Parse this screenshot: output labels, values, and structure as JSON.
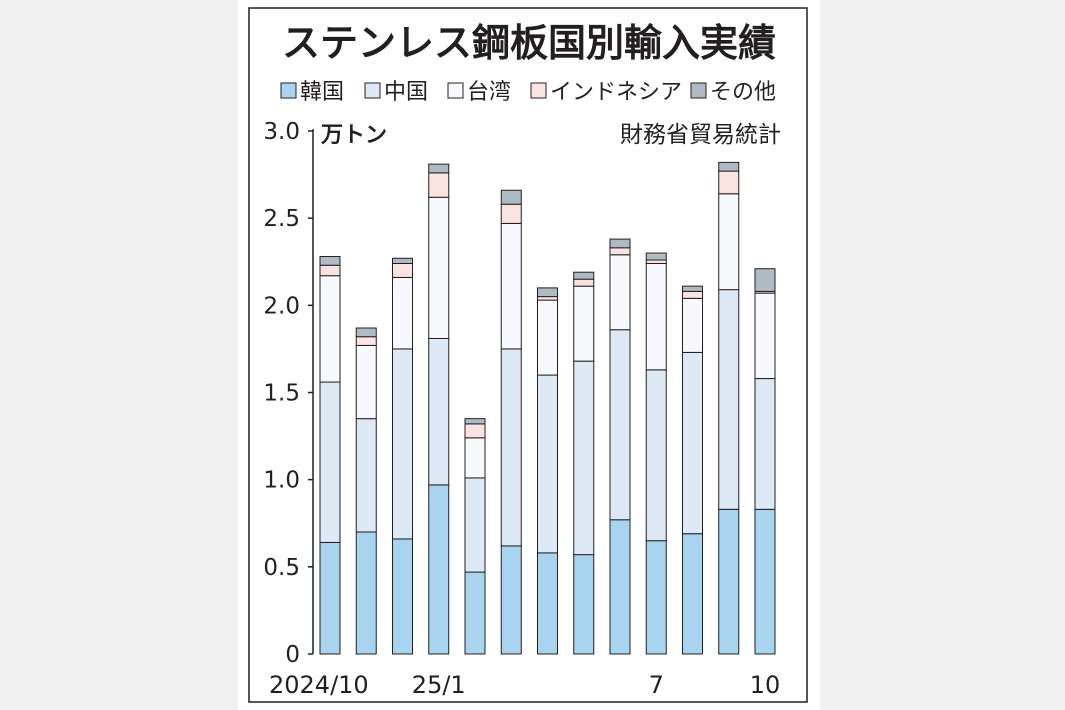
{
  "chart_data": {
    "type": "bar",
    "stacked": true,
    "title": "ステンレス鋼板国別輸入実績",
    "unit_label": "万トン",
    "source": "財務省貿易統計",
    "ylim": [
      0,
      3.0
    ],
    "y_ticks": [
      "0",
      "0.5",
      "1.0",
      "1.5",
      "2.0",
      "2.5",
      "3.0"
    ],
    "grid": false,
    "legend_position": "top",
    "months": [
      "2024/10",
      "2024/11",
      "2024/12",
      "2025/1",
      "2025/2",
      "2025/3",
      "2025/4",
      "2025/5",
      "2025/6",
      "2025/7",
      "2025/8",
      "2025/9",
      "2025/10"
    ],
    "x_tick_labels": [
      "2024/10",
      "",
      "",
      "25/1",
      "",
      "",
      "",
      "",
      "",
      "7",
      "",
      "",
      "10"
    ],
    "series": [
      {
        "name": "韓国",
        "color": "#a8d4f0",
        "values": [
          0.64,
          0.7,
          0.66,
          0.97,
          0.47,
          0.62,
          0.58,
          0.57,
          0.77,
          0.65,
          0.69,
          0.83,
          0.83
        ]
      },
      {
        "name": "中国",
        "color": "#ddeaf6",
        "values": [
          0.92,
          0.65,
          1.09,
          0.84,
          0.54,
          1.13,
          1.02,
          1.11,
          1.09,
          0.98,
          1.04,
          1.26,
          0.75
        ]
      },
      {
        "name": "台湾",
        "color": "#f7f9fc",
        "values": [
          0.61,
          0.42,
          0.41,
          0.81,
          0.23,
          0.72,
          0.43,
          0.43,
          0.43,
          0.61,
          0.31,
          0.55,
          0.49
        ]
      },
      {
        "name": "インドネシア",
        "color": "#fbe3e1",
        "values": [
          0.06,
          0.05,
          0.08,
          0.14,
          0.08,
          0.11,
          0.02,
          0.04,
          0.04,
          0.02,
          0.04,
          0.13,
          0.01
        ]
      },
      {
        "name": "その他",
        "color": "#aebbc4",
        "values": [
          0.05,
          0.05,
          0.03,
          0.05,
          0.03,
          0.08,
          0.05,
          0.04,
          0.05,
          0.04,
          0.03,
          0.05,
          0.13
        ]
      }
    ]
  }
}
